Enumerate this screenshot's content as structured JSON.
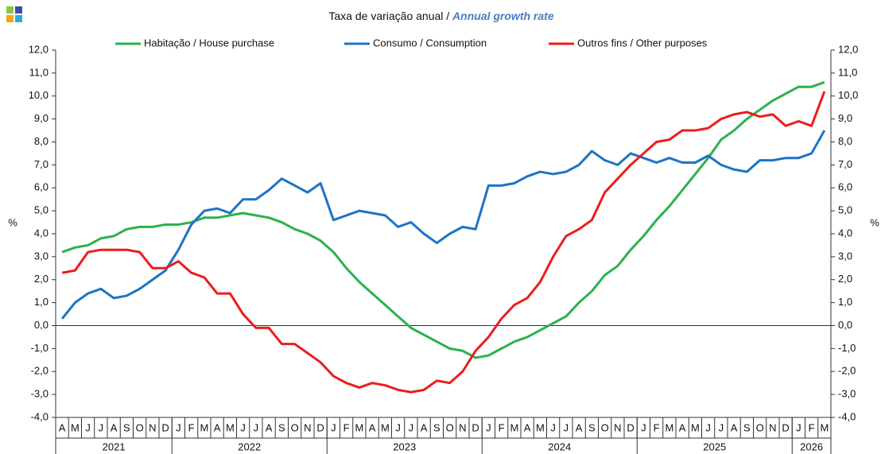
{
  "chart_data": {
    "type": "line",
    "title": "Taxa de variação anual / ",
    "title_en": "Annual growth rate",
    "ylabel": "%",
    "y2label": "%",
    "categories": [
      "A",
      "M",
      "J",
      "J",
      "A",
      "S",
      "O",
      "N",
      "D",
      "J",
      "F",
      "M",
      "A",
      "M",
      "J",
      "J",
      "A",
      "S",
      "O",
      "N",
      "D",
      "J",
      "F",
      "M",
      "A",
      "M",
      "J",
      "J",
      "A",
      "S",
      "O",
      "N",
      "D",
      "J",
      "F",
      "M",
      "A",
      "M",
      "J",
      "J",
      "A",
      "S",
      "O",
      "N",
      "D",
      "J",
      "F",
      "M",
      "A",
      "M",
      "J",
      "J",
      "A",
      "S",
      "O",
      "N",
      "D",
      "J",
      "F",
      "M"
    ],
    "years": [
      "2021",
      "2022",
      "2023",
      "2024",
      "2025",
      "2026"
    ],
    "series": [
      {
        "name": "Habitação / House purchase",
        "color": "#2bb24c",
        "values": [
          3.2,
          3.4,
          3.5,
          3.8,
          3.9,
          4.2,
          4.3,
          4.3,
          4.4,
          4.4,
          4.5,
          4.7,
          4.7,
          4.8,
          4.9,
          4.8,
          4.7,
          4.5,
          4.2,
          4.0,
          3.7,
          3.2,
          2.5,
          1.9,
          1.4,
          0.9,
          0.4,
          -0.1,
          -0.4,
          -0.7,
          -1.0,
          -1.1,
          -1.4,
          -1.3,
          -1.0,
          -0.7,
          -0.5,
          -0.2,
          0.1,
          0.4,
          1.0,
          1.5,
          2.2,
          2.6,
          3.3,
          3.9,
          4.6,
          5.2,
          5.9,
          6.6,
          7.3,
          8.1,
          8.5,
          9.0,
          9.4,
          9.8,
          10.1,
          10.4,
          10.4,
          10.6
        ]
      },
      {
        "name": "Consumo / Consumption",
        "color": "#1b74c4",
        "values": [
          0.3,
          1.0,
          1.4,
          1.6,
          1.2,
          1.3,
          1.6,
          2.0,
          2.4,
          3.3,
          4.4,
          5.0,
          5.1,
          4.9,
          5.5,
          5.5,
          5.9,
          6.4,
          6.1,
          5.8,
          6.2,
          4.6,
          4.8,
          5.0,
          4.9,
          4.8,
          4.3,
          4.5,
          4.0,
          3.6,
          4.0,
          4.3,
          4.2,
          6.1,
          6.1,
          6.2,
          6.5,
          6.7,
          6.6,
          6.7,
          7.0,
          7.6,
          7.2,
          7.0,
          7.5,
          7.3,
          7.1,
          7.3,
          7.1,
          7.1,
          7.4,
          7.0,
          6.8,
          6.7,
          7.2,
          7.2,
          7.3,
          7.3,
          7.5,
          8.5
        ]
      },
      {
        "name": "Outros fins / Other purposes",
        "color": "#ee1c1c",
        "values": [
          2.3,
          2.4,
          3.2,
          3.3,
          3.3,
          3.3,
          3.2,
          2.5,
          2.5,
          2.8,
          2.3,
          2.1,
          1.4,
          1.4,
          0.5,
          -0.1,
          -0.1,
          -0.8,
          -0.8,
          -1.2,
          -1.6,
          -2.2,
          -2.5,
          -2.7,
          -2.5,
          -2.6,
          -2.8,
          -2.9,
          -2.8,
          -2.4,
          -2.5,
          -2.0,
          -1.1,
          -0.5,
          0.3,
          0.9,
          1.2,
          1.9,
          3.0,
          3.9,
          4.2,
          4.6,
          5.8,
          6.4,
          7.0,
          7.5,
          8.0,
          8.1,
          8.5,
          8.5,
          8.6,
          9.0,
          9.2,
          9.3,
          9.1,
          9.2,
          8.7,
          8.9,
          8.7,
          10.2
        ]
      }
    ],
    "ylim": [
      -4,
      12
    ],
    "yticks": [
      {
        "value": -4,
        "label": "-4,0"
      },
      {
        "value": -3,
        "label": "-3,0"
      },
      {
        "value": -2,
        "label": "-2,0"
      },
      {
        "value": -1,
        "label": "-1,0"
      },
      {
        "value": 0,
        "label": "0,0"
      },
      {
        "value": 1,
        "label": "1,0"
      },
      {
        "value": 2,
        "label": "2,0"
      },
      {
        "value": 3,
        "label": "3,0"
      },
      {
        "value": 4,
        "label": "4,0"
      },
      {
        "value": 5,
        "label": "5,0"
      },
      {
        "value": 6,
        "label": "6,0"
      },
      {
        "value": 7,
        "label": "7,0"
      },
      {
        "value": 8,
        "label": "8,0"
      },
      {
        "value": 9,
        "label": "9,0"
      },
      {
        "value": 10,
        "label": "10,0"
      },
      {
        "value": 11,
        "label": "11,0"
      },
      {
        "value": 12,
        "label": "12,0"
      }
    ],
    "y2lim": [
      -4,
      12
    ],
    "y2ticks": [
      {
        "value": -4,
        "label": "-4,0"
      },
      {
        "value": -3,
        "label": "-3,0"
      },
      {
        "value": -2,
        "label": "-2,0"
      },
      {
        "value": -1,
        "label": "-1,0"
      },
      {
        "value": 0,
        "label": "0,0"
      },
      {
        "value": 1,
        "label": "1,0"
      },
      {
        "value": 2,
        "label": "2,0"
      },
      {
        "value": 3,
        "label": "3,0"
      },
      {
        "value": 4,
        "label": "4,0"
      },
      {
        "value": 5,
        "label": "5,0"
      },
      {
        "value": 6,
        "label": "6,0"
      },
      {
        "value": 7,
        "label": "7,0"
      },
      {
        "value": 8,
        "label": "8,0"
      },
      {
        "value": 9,
        "label": "9,0"
      },
      {
        "value": 10,
        "label": "10,0"
      },
      {
        "value": 11,
        "label": "11,0"
      },
      {
        "value": 12,
        "label": "12,0"
      }
    ],
    "grid": false
  }
}
